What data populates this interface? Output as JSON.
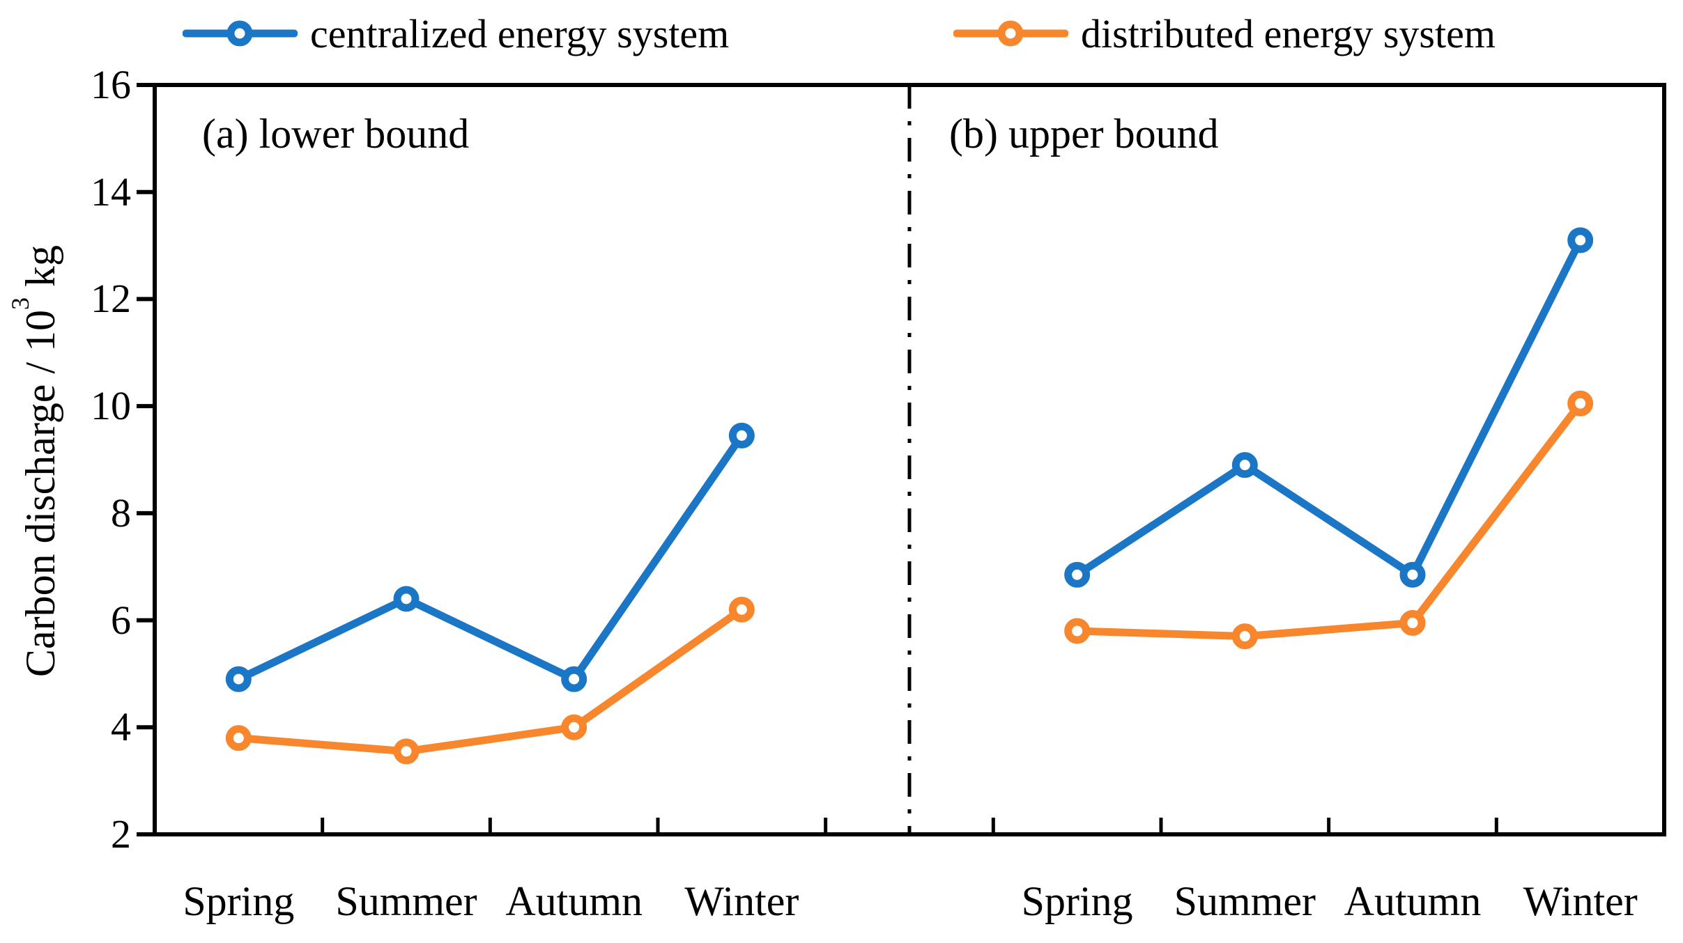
{
  "figure": {
    "background": "#ffffff"
  },
  "legend": {
    "items": [
      {
        "label": "centralized energy system",
        "color": "#1b76c5"
      },
      {
        "label": "distributed energy system",
        "color": "#f7862c"
      }
    ]
  },
  "axis": {
    "ylabel": {
      "before": "Carbon discharge / 10",
      "sup": "3",
      "after": " kg"
    }
  },
  "divider": {
    "style": "dash-dot",
    "color": "#000000"
  },
  "chart_data": [
    {
      "type": "line",
      "panel": "a",
      "title": "(a) lower bound",
      "categories": [
        "Spring",
        "Summer",
        "Autumn",
        "Winter"
      ],
      "series": [
        {
          "name": "centralized energy system",
          "color": "#1b76c5",
          "values": [
            4.9,
            6.4,
            4.9,
            9.45
          ]
        },
        {
          "name": "distributed energy system",
          "color": "#f7862c",
          "values": [
            3.8,
            3.55,
            4.0,
            6.2
          ]
        }
      ],
      "xlabel": "",
      "ylabel": "Carbon discharge / 10^3 kg",
      "ylim": [
        2,
        16
      ],
      "yticks": [
        2,
        4,
        6,
        8,
        10,
        12,
        14,
        16
      ],
      "grid": false,
      "marker": "open-circle",
      "legend_position": "top"
    },
    {
      "type": "line",
      "panel": "b",
      "title": "(b) upper bound",
      "categories": [
        "Spring",
        "Summer",
        "Autumn",
        "Winter"
      ],
      "series": [
        {
          "name": "centralized energy system",
          "color": "#1b76c5",
          "values": [
            6.85,
            8.9,
            6.85,
            13.1
          ]
        },
        {
          "name": "distributed energy system",
          "color": "#f7862c",
          "values": [
            5.8,
            5.7,
            5.95,
            10.05
          ]
        }
      ],
      "xlabel": "",
      "ylabel": "Carbon discharge / 10^3 kg",
      "ylim": [
        2,
        16
      ],
      "yticks": [
        2,
        4,
        6,
        8,
        10,
        12,
        14,
        16
      ],
      "grid": false,
      "marker": "open-circle",
      "legend_position": "top"
    }
  ]
}
